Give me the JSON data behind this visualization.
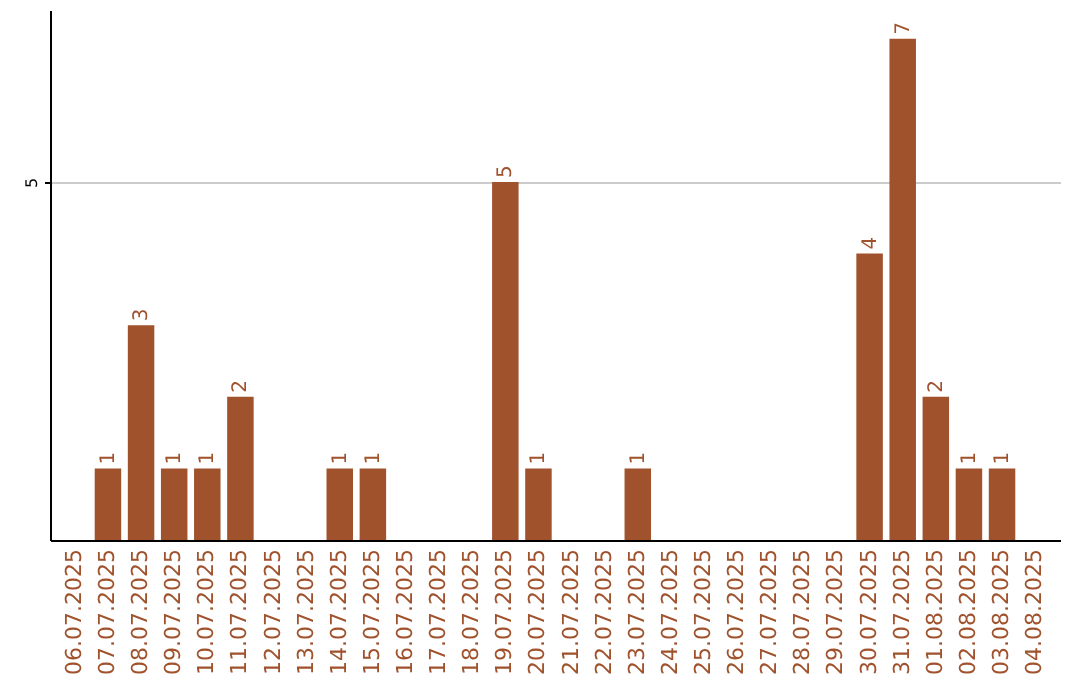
{
  "chart_data": {
    "type": "bar",
    "categories": [
      "06.07.2025",
      "07.07.2025",
      "08.07.2025",
      "09.07.2025",
      "10.07.2025",
      "11.07.2025",
      "12.07.2025",
      "13.07.2025",
      "14.07.2025",
      "15.07.2025",
      "16.07.2025",
      "17.07.2025",
      "18.07.2025",
      "19.07.2025",
      "20.07.2025",
      "21.07.2025",
      "22.07.2025",
      "23.07.2025",
      "24.07.2025",
      "25.07.2025",
      "26.07.2025",
      "27.07.2025",
      "28.07.2025",
      "29.07.2025",
      "30.07.2025",
      "31.07.2025",
      "01.08.2025",
      "02.08.2025",
      "03.08.2025",
      "04.08.2025"
    ],
    "values": [
      0,
      1,
      3,
      1,
      1,
      2,
      0,
      0,
      1,
      1,
      0,
      0,
      0,
      5,
      1,
      0,
      0,
      1,
      0,
      0,
      0,
      0,
      0,
      0,
      4,
      7,
      2,
      1,
      1,
      0
    ],
    "value_labels": [
      null,
      "1",
      "3",
      "1",
      "1",
      "2",
      null,
      null,
      "1",
      "1",
      null,
      null,
      null,
      "5",
      "1",
      null,
      null,
      "1",
      null,
      null,
      null,
      null,
      null,
      null,
      "4",
      "7",
      "2",
      "1",
      "1",
      null
    ],
    "color": "#a0522d",
    "ylim": [
      0,
      7.4
    ],
    "yticks": [
      5
    ],
    "grid": "y"
  }
}
